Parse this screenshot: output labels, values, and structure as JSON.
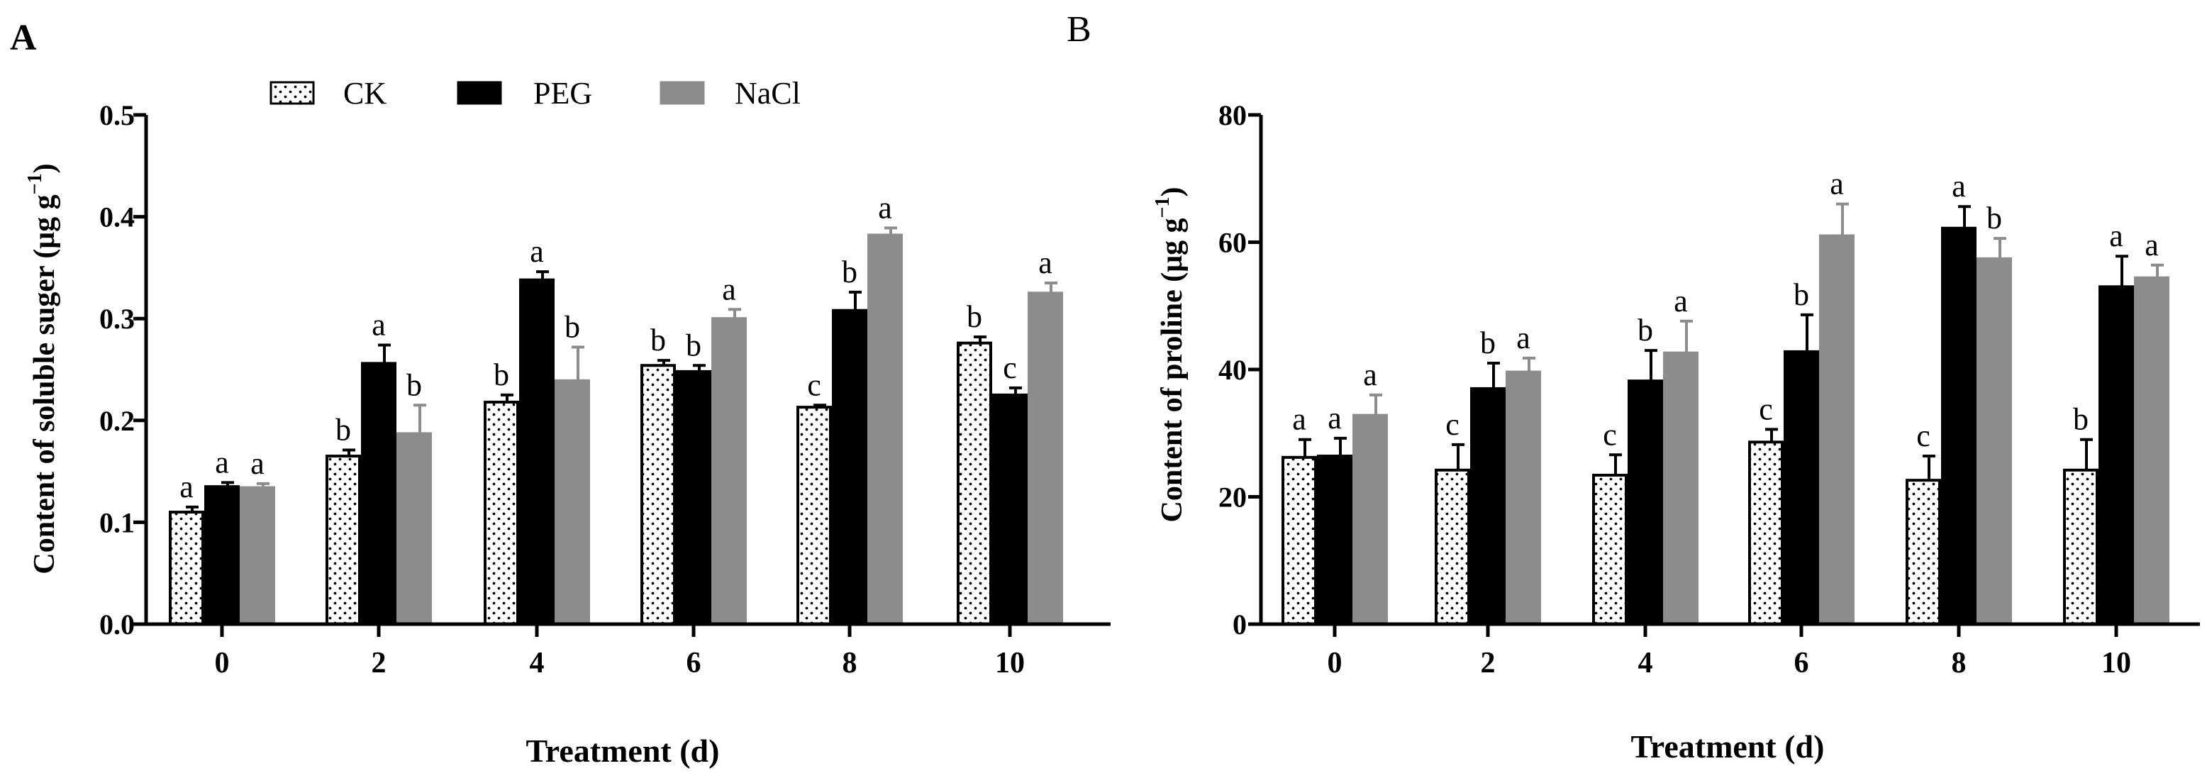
{
  "colors": {
    "ck": "#ffffff",
    "peg": "#000000",
    "nacl": "#8c8c8c",
    "axis": "#000000"
  },
  "legend": [
    {
      "key": "ck",
      "label": "CK"
    },
    {
      "key": "peg",
      "label": "PEG"
    },
    {
      "key": "nacl",
      "label": "NaCl"
    }
  ],
  "chart_data": [
    {
      "panel": "A",
      "type": "bar",
      "title": "",
      "xlabel": "Treatment (d)",
      "ylabel": "Content of soluble suger (μg g",
      "ylabel_sup": "−1",
      "ylabel_close": ")",
      "ylim": [
        0,
        0.5
      ],
      "yticks": [
        "0.0",
        "0.1",
        "0.2",
        "0.3",
        "0.4",
        "0.5"
      ],
      "categories": [
        "0",
        "2",
        "4",
        "6",
        "8",
        "10"
      ],
      "series": [
        {
          "name": "CK",
          "key": "ck",
          "values": [
            0.11,
            0.165,
            0.218,
            0.254,
            0.213,
            0.276
          ],
          "errors": [
            0.005,
            0.006,
            0.007,
            0.005,
            0.002,
            0.006
          ],
          "letters": [
            "a",
            "b",
            "b",
            "b",
            "c",
            "b"
          ]
        },
        {
          "name": "PEG",
          "key": "peg",
          "values": [
            0.135,
            0.256,
            0.338,
            0.248,
            0.308,
            0.225
          ],
          "errors": [
            0.004,
            0.018,
            0.008,
            0.006,
            0.018,
            0.007
          ],
          "letters": [
            "a",
            "a",
            "a",
            "b",
            "b",
            "c"
          ]
        },
        {
          "name": "NaCl",
          "key": "nacl",
          "values": [
            0.134,
            0.187,
            0.239,
            0.3,
            0.382,
            0.325
          ],
          "errors": [
            0.004,
            0.028,
            0.033,
            0.009,
            0.007,
            0.01
          ],
          "letters": [
            "a",
            "b",
            "b",
            "a",
            "a",
            "a"
          ]
        }
      ]
    },
    {
      "panel": "B",
      "type": "bar",
      "title": "",
      "xlabel": "Treatment (d)",
      "ylabel": "Content of proline (μg g",
      "ylabel_sup": "−1",
      "ylabel_close": ")",
      "ylim": [
        0,
        80
      ],
      "yticks": [
        "0",
        "20",
        "40",
        "60",
        "80"
      ],
      "categories": [
        "0",
        "2",
        "4",
        "6",
        "8",
        "10"
      ],
      "series": [
        {
          "name": "CK",
          "key": "ck",
          "values": [
            26.2,
            24.2,
            23.4,
            28.6,
            22.6,
            24.2
          ],
          "errors": [
            2.8,
            4.0,
            3.2,
            2.0,
            3.8,
            4.8
          ],
          "letters": [
            "a",
            "c",
            "c",
            "c",
            "c",
            "b"
          ]
        },
        {
          "name": "PEG",
          "key": "peg",
          "values": [
            26.4,
            37.0,
            38.2,
            42.8,
            62.2,
            53.0
          ],
          "errors": [
            2.8,
            4.0,
            4.8,
            5.8,
            3.4,
            4.8
          ],
          "letters": [
            "a",
            "b",
            "b",
            "b",
            "a",
            "a"
          ]
        },
        {
          "name": "NaCl",
          "key": "nacl",
          "values": [
            32.8,
            39.6,
            42.6,
            61.0,
            57.4,
            54.4
          ],
          "errors": [
            3.2,
            2.2,
            5.0,
            5.0,
            3.2,
            2.0
          ],
          "letters": [
            "a",
            "a",
            "a",
            "a",
            "b",
            "a"
          ]
        }
      ]
    }
  ]
}
